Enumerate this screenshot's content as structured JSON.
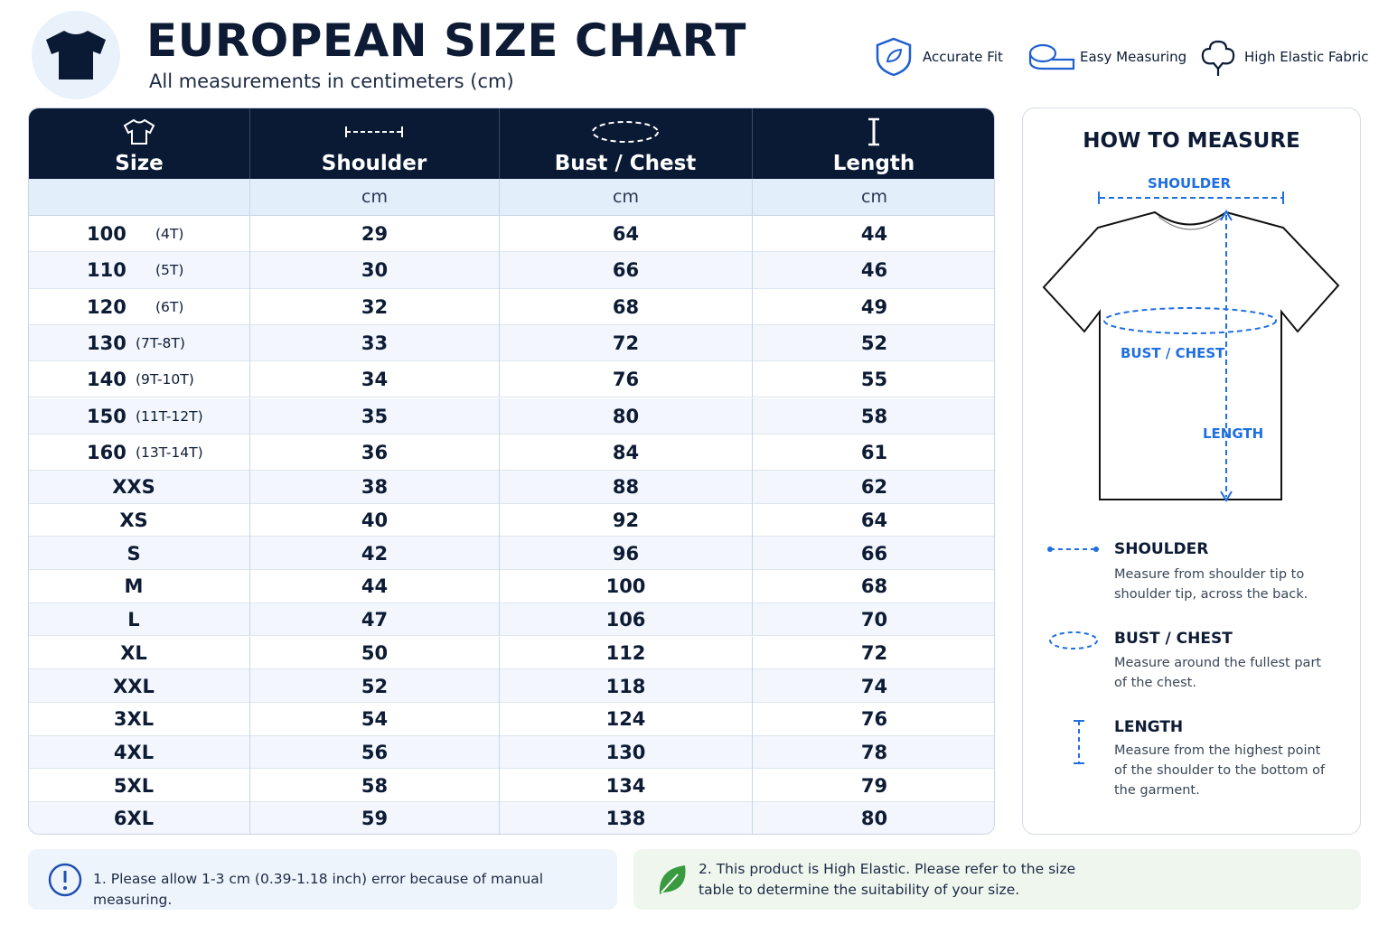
{
  "header": {
    "title": "EUROPEAN SIZE CHART",
    "subtitle": "All measurements in centimeters (cm)"
  },
  "features": [
    "Accurate Fit",
    "Easy Measuring",
    "High Elastic Fabric"
  ],
  "table": {
    "columns": [
      "Size",
      "Shoulder",
      "Bust / Chest",
      "Length"
    ],
    "units": [
      "cm",
      "cm",
      "cm"
    ],
    "rows": [
      {
        "size": "100",
        "age": "(4T)",
        "values": [
          29,
          64,
          44
        ]
      },
      {
        "size": "110",
        "age": "(5T)",
        "values": [
          30,
          66,
          46
        ]
      },
      {
        "size": "120",
        "age": "(6T)",
        "values": [
          32,
          68,
          49
        ]
      },
      {
        "size": "130",
        "age": "(7T-8T)",
        "values": [
          33,
          72,
          52
        ]
      },
      {
        "size": "140",
        "age": "(9T-10T)",
        "values": [
          34,
          76,
          55
        ]
      },
      {
        "size": "150",
        "age": "(11T-12T)",
        "values": [
          35,
          80,
          58
        ]
      },
      {
        "size": "160",
        "age": "(13T-14T)",
        "values": [
          36,
          84,
          61
        ]
      },
      {
        "size": "XXS",
        "values": [
          38,
          88,
          62
        ]
      },
      {
        "size": "XS",
        "values": [
          40,
          92,
          64
        ]
      },
      {
        "size": "S",
        "values": [
          42,
          96,
          66
        ]
      },
      {
        "size": "M",
        "values": [
          44,
          100,
          68
        ]
      },
      {
        "size": "L",
        "values": [
          47,
          106,
          70
        ]
      },
      {
        "size": "XL",
        "values": [
          50,
          112,
          72
        ]
      },
      {
        "size": "XXL",
        "values": [
          52,
          118,
          74
        ]
      },
      {
        "size": "3XL",
        "values": [
          54,
          124,
          76
        ]
      },
      {
        "size": "4XL",
        "values": [
          56,
          130,
          78
        ]
      },
      {
        "size": "5XL",
        "values": [
          58,
          134,
          79
        ]
      },
      {
        "size": "6XL",
        "values": [
          59,
          138,
          80
        ]
      }
    ]
  },
  "guide": {
    "title": "HOW TO MEASURE",
    "diagram_labels": {
      "shoulder": "SHOULDER",
      "bust": "BUST / CHEST",
      "length": "LENGTH"
    },
    "items": [
      {
        "title": "SHOULDER",
        "text": "Measure from shoulder tip to shoulder tip, across the back."
      },
      {
        "title": "BUST / CHEST",
        "text": "Measure around the fullest part of the chest."
      },
      {
        "title": "LENGTH",
        "text": "Measure from the highest point of the shoulder to the bottom of the garment."
      }
    ]
  },
  "notes": [
    "1. Please allow 1-3 cm (0.39-1.18 inch) error because of manual measuring.",
    "2. This product is High Elastic. Please refer to the size table to determine the suitability of your size."
  ]
}
